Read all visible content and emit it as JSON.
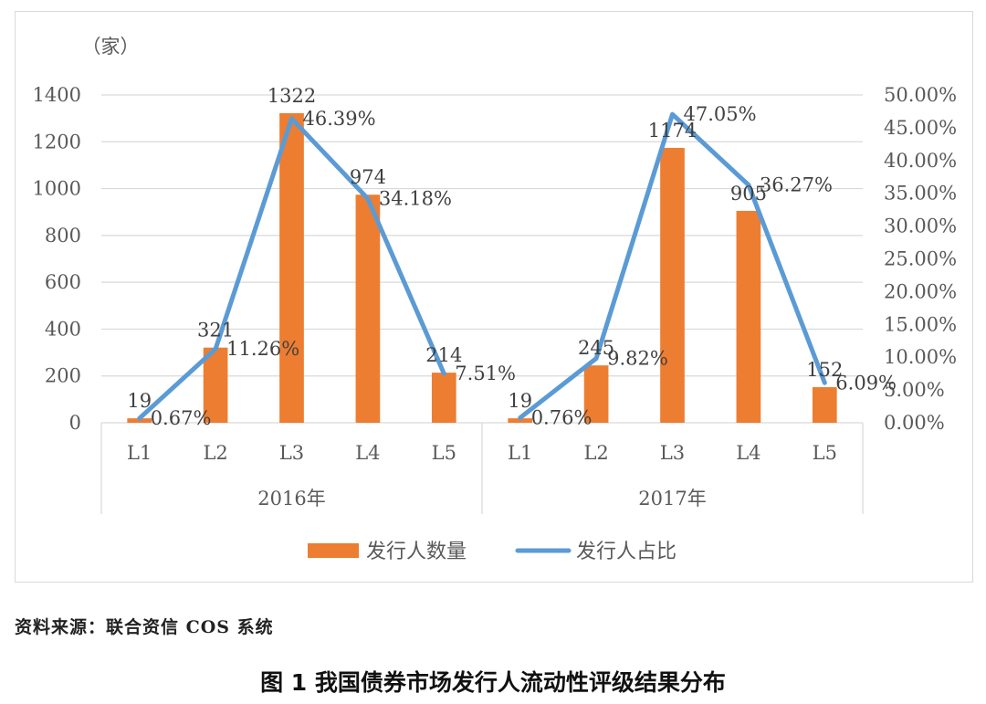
{
  "chart_data": {
    "type": "bar+line",
    "y_unit_label": "（家）",
    "groups": [
      "2016年",
      "2017年"
    ],
    "categories": [
      "L1",
      "L2",
      "L3",
      "L4",
      "L5"
    ],
    "series": [
      {
        "name": "发行人数量",
        "type": "bar",
        "axis": "left",
        "color": "#ED7D31",
        "values": {
          "2016年": [
            19,
            321,
            1322,
            974,
            214
          ],
          "2017年": [
            19,
            245,
            1174,
            905,
            152
          ]
        }
      },
      {
        "name": "发行人占比",
        "type": "line",
        "axis": "right",
        "color": "#5B9BD5",
        "values": {
          "2016年": [
            0.67,
            11.26,
            46.39,
            34.18,
            7.51
          ],
          "2017年": [
            0.76,
            9.82,
            47.05,
            36.27,
            6.09
          ]
        },
        "labels": {
          "2016年": [
            "0.67%",
            "11.26%",
            "46.39%",
            "34.18%",
            "7.51%"
          ],
          "2017年": [
            "0.76%",
            "9.82%",
            "47.05%",
            "36.27%",
            "6.09%"
          ]
        }
      }
    ],
    "left_axis": {
      "ylim": [
        0,
        1400
      ],
      "ticks": [
        "0",
        "200",
        "400",
        "600",
        "800",
        "1000",
        "1200",
        "1400"
      ]
    },
    "right_axis": {
      "ylim": [
        0,
        50
      ],
      "ticks": [
        "0.00%",
        "5.00%",
        "10.00%",
        "15.00%",
        "20.00%",
        "25.00%",
        "30.00%",
        "35.00%",
        "40.00%",
        "45.00%",
        "50.00%"
      ]
    },
    "grid": true,
    "legend": "bottom-center"
  },
  "source_note": "资料来源：联合资信 COS 系统",
  "figure_caption": "图 1    我国债券市场发行人流动性评级结果分布"
}
